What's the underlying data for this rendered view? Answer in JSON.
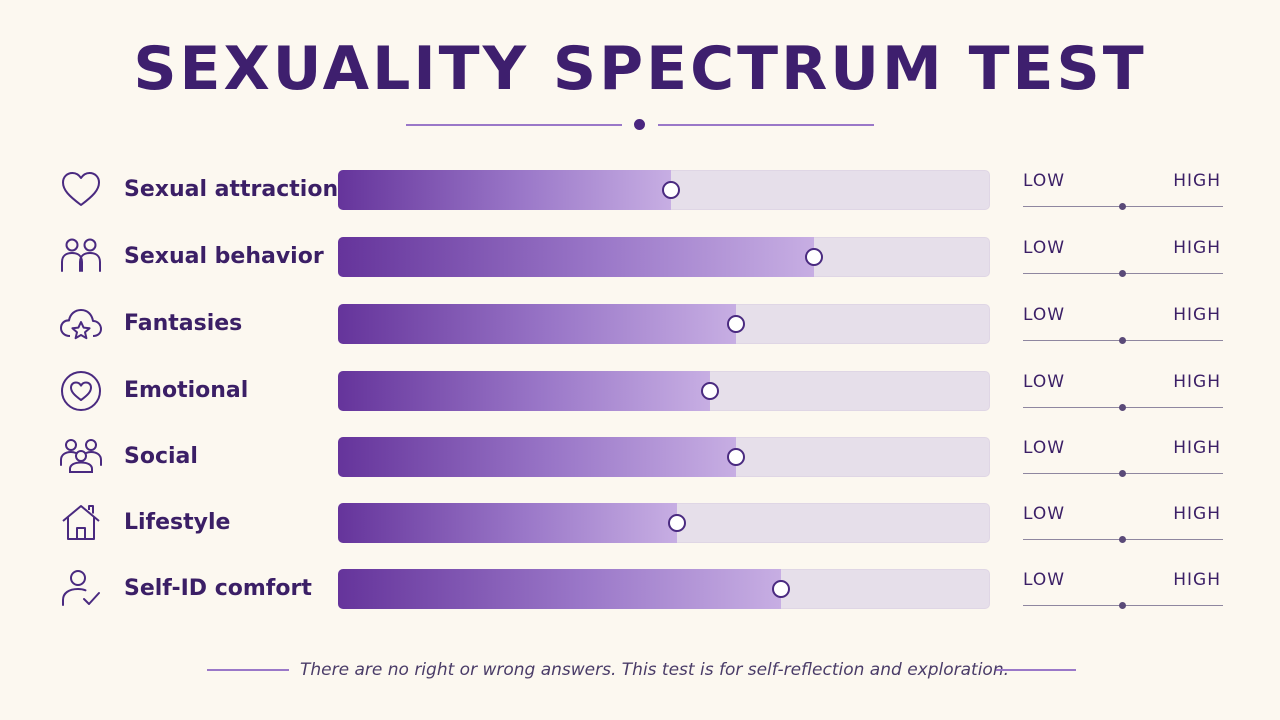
{
  "title": "SEXUALITY SPECTRUM TEST",
  "scale": {
    "low": "LOW",
    "high": "HIGH"
  },
  "rows": [
    {
      "label": "Sexual attraction",
      "icon": "heart-icon",
      "value": 0.51
    },
    {
      "label": "Sexual behavior",
      "icon": "people-icon",
      "value": 0.73
    },
    {
      "label": "Fantasies",
      "icon": "cloud-star-icon",
      "value": 0.61
    },
    {
      "label": "Emotional",
      "icon": "circle-heart-icon",
      "value": 0.57
    },
    {
      "label": "Social",
      "icon": "group-icon",
      "value": 0.61
    },
    {
      "label": "Lifestyle",
      "icon": "home-icon",
      "value": 0.52
    },
    {
      "label": "Self-ID comfort",
      "icon": "user-check-icon",
      "value": 0.68
    }
  ],
  "footer_note": "There are no right or wrong answers. This test is for self-reflection and exploration.",
  "colors": {
    "background": "#fcf8f0",
    "primary": "#3e1f6e",
    "accent": "#9a78c8",
    "track": "#e6dfea"
  }
}
